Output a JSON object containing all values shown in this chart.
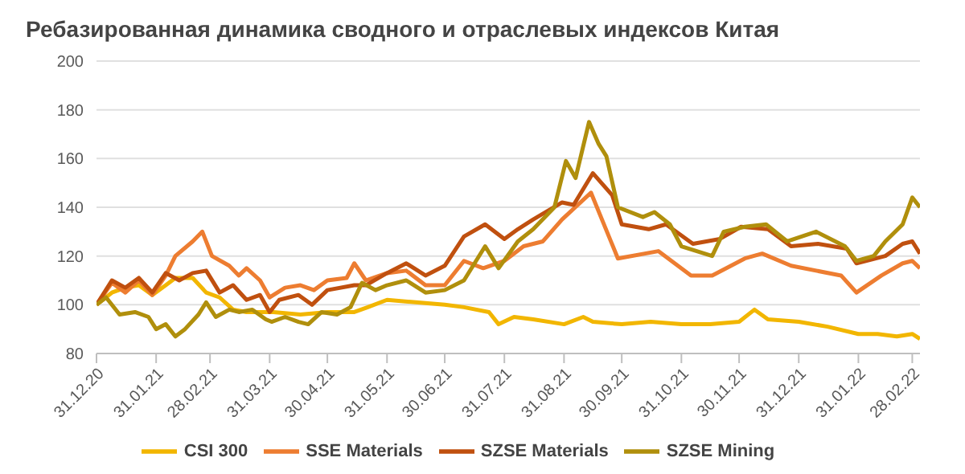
{
  "chart_data": {
    "type": "line",
    "title": "Ребазированная динамика сводного и отраслевых индексов Китая",
    "xlim": [
      "2020-12-31",
      "2022-03-04"
    ],
    "xticks": [
      {
        "value": "2020-12-31",
        "label": "31.12.20"
      },
      {
        "value": "2021-01-31",
        "label": "31.01.21"
      },
      {
        "value": "2021-02-28",
        "label": "28.02.21"
      },
      {
        "value": "2021-03-31",
        "label": "31.03.21"
      },
      {
        "value": "2021-04-30",
        "label": "30.04.21"
      },
      {
        "value": "2021-05-31",
        "label": "31.05.21"
      },
      {
        "value": "2021-06-30",
        "label": "30.06.21"
      },
      {
        "value": "2021-07-31",
        "label": "31.07.21"
      },
      {
        "value": "2021-08-31",
        "label": "31.08.21"
      },
      {
        "value": "2021-09-30",
        "label": "30.09.21"
      },
      {
        "value": "2021-10-31",
        "label": "31.10.21"
      },
      {
        "value": "2021-11-30",
        "label": "30.11.21"
      },
      {
        "value": "2021-12-31",
        "label": "31.12.21"
      },
      {
        "value": "2022-01-31",
        "label": "31.01.22"
      },
      {
        "value": "2022-02-28",
        "label": "28.02.22"
      }
    ],
    "ylim": [
      80,
      200
    ],
    "yticks": [
      80,
      100,
      120,
      140,
      160,
      180,
      200
    ],
    "grid": "y",
    "legend": "bottom",
    "marker": "none",
    "line_style": "solid",
    "series": [
      {
        "name": "CSI 300",
        "color": "#f2b600",
        "x": [
          "2020-12-31",
          "2021-01-08",
          "2021-01-15",
          "2021-01-22",
          "2021-01-29",
          "2021-02-05",
          "2021-02-10",
          "2021-02-19",
          "2021-02-26",
          "2021-03-05",
          "2021-03-12",
          "2021-03-19",
          "2021-03-26",
          "2021-04-02",
          "2021-04-16",
          "2021-04-30",
          "2021-05-14",
          "2021-05-21",
          "2021-05-31",
          "2021-06-15",
          "2021-06-30",
          "2021-07-10",
          "2021-07-23",
          "2021-07-28",
          "2021-08-05",
          "2021-08-15",
          "2021-08-31",
          "2021-09-10",
          "2021-09-15",
          "2021-09-30",
          "2021-10-15",
          "2021-10-31",
          "2021-11-15",
          "2021-11-30",
          "2021-12-08",
          "2021-12-15",
          "2021-12-31",
          "2022-01-15",
          "2022-01-31",
          "2022-02-10",
          "2022-02-20",
          "2022-02-28",
          "2022-03-04"
        ],
        "values": [
          100,
          105,
          107,
          108,
          104,
          108,
          111,
          111,
          105,
          103,
          98,
          97,
          97,
          97,
          96,
          97,
          97,
          99,
          102,
          101,
          100,
          99,
          97,
          92,
          95,
          94,
          92,
          95,
          93,
          92,
          93,
          92,
          92,
          93,
          98,
          94,
          93,
          91,
          88,
          88,
          87,
          88,
          86
        ]
      },
      {
        "name": "SSE Materials",
        "color": "#ed7d31",
        "x": [
          "2020-12-31",
          "2021-01-08",
          "2021-01-15",
          "2021-01-22",
          "2021-01-29",
          "2021-02-05",
          "2021-02-10",
          "2021-02-19",
          "2021-02-24",
          "2021-03-01",
          "2021-03-10",
          "2021-03-15",
          "2021-03-19",
          "2021-03-26",
          "2021-03-31",
          "2021-04-08",
          "2021-04-16",
          "2021-04-23",
          "2021-04-30",
          "2021-05-10",
          "2021-05-14",
          "2021-05-20",
          "2021-05-31",
          "2021-06-10",
          "2021-06-20",
          "2021-06-30",
          "2021-07-10",
          "2021-07-20",
          "2021-07-31",
          "2021-08-10",
          "2021-08-20",
          "2021-08-30",
          "2021-09-14",
          "2021-09-28",
          "2021-10-19",
          "2021-11-05",
          "2021-11-16",
          "2021-12-03",
          "2021-12-12",
          "2021-12-27",
          "2022-01-22",
          "2022-01-30",
          "2022-02-12",
          "2022-02-23",
          "2022-02-28",
          "2022-03-04"
        ],
        "values": [
          100,
          109,
          105,
          110,
          104,
          112,
          120,
          126,
          130,
          120,
          116,
          112,
          115,
          110,
          103,
          107,
          108,
          106,
          110,
          111,
          117,
          110,
          113,
          114,
          108,
          108,
          118,
          115,
          118,
          124,
          126,
          135,
          146,
          119,
          122,
          112,
          112,
          119,
          121,
          116,
          112,
          105,
          112,
          117,
          118,
          115
        ]
      },
      {
        "name": "SZSE Materials",
        "color": "#c0500f",
        "x": [
          "2020-12-31",
          "2021-01-08",
          "2021-01-15",
          "2021-01-22",
          "2021-01-29",
          "2021-02-05",
          "2021-02-12",
          "2021-02-19",
          "2021-02-26",
          "2021-03-05",
          "2021-03-12",
          "2021-03-19",
          "2021-03-26",
          "2021-03-31",
          "2021-04-05",
          "2021-04-15",
          "2021-04-22",
          "2021-04-30",
          "2021-05-14",
          "2021-05-20",
          "2021-05-31",
          "2021-06-10",
          "2021-06-20",
          "2021-06-30",
          "2021-07-10",
          "2021-07-21",
          "2021-07-31",
          "2021-08-07",
          "2021-08-15",
          "2021-08-30",
          "2021-09-05",
          "2021-09-15",
          "2021-09-25",
          "2021-09-30",
          "2021-10-14",
          "2021-10-23",
          "2021-11-06",
          "2021-11-20",
          "2021-12-01",
          "2021-12-15",
          "2021-12-27",
          "2022-01-10",
          "2022-01-25",
          "2022-01-30",
          "2022-02-14",
          "2022-02-23",
          "2022-02-28",
          "2022-03-04"
        ],
        "values": [
          100,
          110,
          107,
          111,
          105,
          113,
          110,
          113,
          114,
          105,
          108,
          102,
          104,
          97,
          102,
          104,
          100,
          106,
          108,
          108,
          113,
          117,
          112,
          116,
          128,
          133,
          127,
          131,
          135,
          142,
          141,
          154,
          145,
          133,
          131,
          133,
          125,
          127,
          132,
          131,
          124,
          125,
          123,
          117,
          120,
          125,
          126,
          121
        ]
      },
      {
        "name": "SZSE Mining",
        "color": "#b08f0c",
        "x": [
          "2020-12-31",
          "2021-01-05",
          "2021-01-12",
          "2021-01-20",
          "2021-01-27",
          "2021-01-31",
          "2021-02-05",
          "2021-02-10",
          "2021-02-15",
          "2021-02-22",
          "2021-02-26",
          "2021-03-03",
          "2021-03-10",
          "2021-03-15",
          "2021-03-22",
          "2021-03-29",
          "2021-04-01",
          "2021-04-08",
          "2021-04-15",
          "2021-04-20",
          "2021-04-27",
          "2021-05-05",
          "2021-05-12",
          "2021-05-18",
          "2021-05-25",
          "2021-05-31",
          "2021-06-10",
          "2021-06-20",
          "2021-06-30",
          "2021-07-10",
          "2021-07-21",
          "2021-07-28",
          "2021-08-07",
          "2021-08-15",
          "2021-08-26",
          "2021-09-01",
          "2021-09-06",
          "2021-09-13",
          "2021-09-18",
          "2021-09-22",
          "2021-09-28",
          "2021-10-11",
          "2021-10-17",
          "2021-10-25",
          "2021-10-31",
          "2021-11-16",
          "2021-11-22",
          "2021-12-03",
          "2021-12-14",
          "2021-12-25",
          "2022-01-09",
          "2022-01-24",
          "2022-01-30",
          "2022-02-08",
          "2022-02-14",
          "2022-02-23",
          "2022-02-28",
          "2022-03-04"
        ],
        "values": [
          100,
          103,
          96,
          97,
          95,
          90,
          92,
          87,
          90,
          96,
          101,
          95,
          98,
          97,
          98,
          94,
          93,
          95,
          93,
          92,
          97,
          96,
          99,
          109,
          106,
          108,
          110,
          105,
          106,
          110,
          124,
          115,
          126,
          131,
          140,
          159,
          152,
          175,
          166,
          161,
          140,
          136,
          138,
          133,
          124,
          120,
          130,
          132,
          133,
          126,
          130,
          124,
          118,
          120,
          126,
          133,
          144,
          140
        ]
      }
    ]
  }
}
